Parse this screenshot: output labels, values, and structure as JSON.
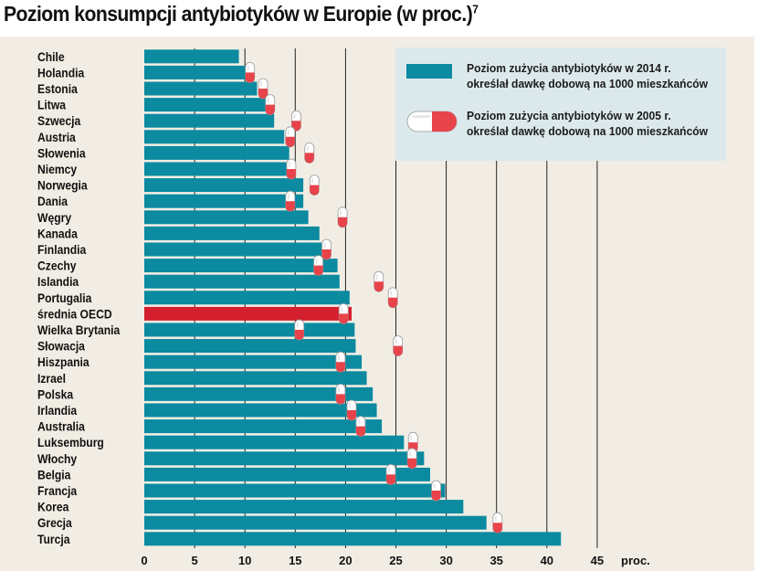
{
  "header": {
    "title": "Poziom konsumpcji antybiotyków w Europie (w proc.)",
    "footnote_mark": "7"
  },
  "legend": {
    "series_2014_line1": "Poziom zużycia antybiotyków w 2014 r.",
    "series_2014_line2": "określał dawkę dobową na 1000 mieszkańców",
    "series_2005_line1": "Poziom zużycia antybiotyków w 2005 r.",
    "series_2005_line2": "określał dawkę dobową na 1000 mieszkańców"
  },
  "colors": {
    "bar": "#0b8aa0",
    "highlight_bar": "#d41f2e",
    "capsule_red": "#e8434a",
    "capsule_white": "#ffffff",
    "panel_bg": "#f1ede4",
    "legend_bg": "#dce9ec",
    "grid": "#222222"
  },
  "chart_data": {
    "type": "bar",
    "orientation": "horizontal",
    "title": "Poziom konsumpcji antybiotyków w Europie (w proc.)",
    "xlabel": "proc.",
    "xlim": [
      0,
      45
    ],
    "xticks": [
      0,
      5,
      10,
      15,
      20,
      25,
      30,
      35,
      40,
      45
    ],
    "grid": true,
    "legend_position": "top-right",
    "highlight_category": "średnia OECD",
    "categories": [
      "Chile",
      "Holandia",
      "Estonia",
      "Litwa",
      "Szwecja",
      "Austria",
      "Słowenia",
      "Niemcy",
      "Norwegia",
      "Dania",
      "Węgry",
      "Kanada",
      "Finlandia",
      "Czechy",
      "Islandia",
      "Portugalia",
      "średnia OECD",
      "Wielka Brytania",
      "Słowacja",
      "Hiszpania",
      "Izrael",
      "Polska",
      "Irlandia",
      "Australia",
      "Luksemburg",
      "Włochy",
      "Belgia",
      "Francja",
      "Korea",
      "Grecja",
      "Turcja"
    ],
    "series": [
      {
        "name": "Poziom zużycia antybiotyków w 2014 r.",
        "marker": "bar",
        "values": [
          9.4,
          10.1,
          11.2,
          12.1,
          12.9,
          13.9,
          14.4,
          14.6,
          15.8,
          15.8,
          16.3,
          17.4,
          17.8,
          19.2,
          19.4,
          20.4,
          20.6,
          20.9,
          21.0,
          21.6,
          22.1,
          22.7,
          23.1,
          23.6,
          25.8,
          27.8,
          28.4,
          29.9,
          31.7,
          34.0,
          41.4
        ]
      },
      {
        "name": "Poziom zużycia antybiotyków w 2005 r.",
        "marker": "capsule",
        "values": [
          null,
          10.5,
          11.8,
          12.5,
          15.1,
          14.5,
          16.4,
          14.6,
          16.9,
          14.5,
          19.7,
          null,
          18.1,
          17.3,
          23.3,
          24.7,
          19.8,
          15.4,
          25.2,
          19.5,
          null,
          19.5,
          20.6,
          21.5,
          26.7,
          26.6,
          24.5,
          29.0,
          null,
          35.1,
          null
        ]
      }
    ]
  }
}
